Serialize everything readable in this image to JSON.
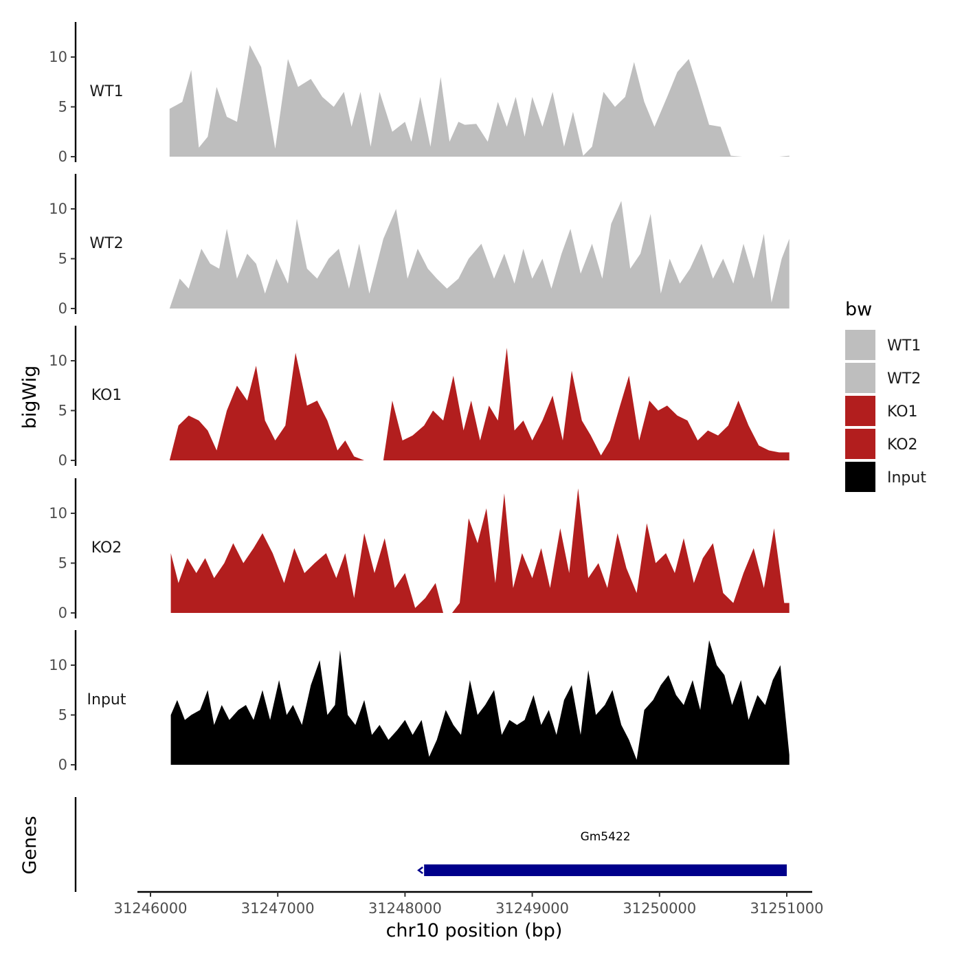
{
  "chart_data": {
    "type": "area",
    "xlabel": "chr10 position (bp)",
    "ylabel": "bigWig",
    "genes_label": "Genes",
    "xlim": [
      31246000,
      31251000
    ],
    "x_ticks": [
      31246000,
      31247000,
      31248000,
      31249000,
      31250000,
      31251000
    ],
    "x_tick_labels": [
      "31246000",
      "31247000",
      "31248000",
      "31249000",
      "31250000",
      "31251000"
    ],
    "ylim": [
      0,
      13.5
    ],
    "y_ticks": [
      0,
      5,
      10
    ],
    "y_tick_labels": [
      "0",
      "5",
      "10"
    ],
    "legend": {
      "title": "bw",
      "entries": [
        {
          "label": "WT1",
          "color": "#bebebe"
        },
        {
          "label": "WT2",
          "color": "#bebebe"
        },
        {
          "label": "KO1",
          "color": "#b21e1e"
        },
        {
          "label": "KO2",
          "color": "#b21e1e"
        },
        {
          "label": "Input",
          "color": "#000000"
        }
      ]
    },
    "series": [
      {
        "name": "WT1",
        "color": "#bebebe",
        "x": [
          31246150,
          31246250,
          31246320,
          31246380,
          31246450,
          31246520,
          31246600,
          31246680,
          31246780,
          31246870,
          31246980,
          31247080,
          31247160,
          31247260,
          31247350,
          31247440,
          31247520,
          31247580,
          31247650,
          31247730,
          31247800,
          31247900,
          31248000,
          31248050,
          31248120,
          31248200,
          31248280,
          31248350,
          31248420,
          31248470,
          31248560,
          31248650,
          31248730,
          31248800,
          31248870,
          31248940,
          31249000,
          31249080,
          31249160,
          31249250,
          31249320,
          31249400,
          31249470,
          31249560,
          31249650,
          31249730,
          31249800,
          31249880,
          31249960,
          31250060,
          31250140,
          31250230,
          31250300,
          31250390,
          31250480,
          31250560,
          31250650,
          31250720,
          31250800,
          31250880,
          31250940,
          31251020
        ],
        "values": [
          4.8,
          5.5,
          8.7,
          0.9,
          2.0,
          7.0,
          4.0,
          3.5,
          11.2,
          9.0,
          0.8,
          9.8,
          7.0,
          7.8,
          6.0,
          5.0,
          6.5,
          3.0,
          6.5,
          1.0,
          6.5,
          2.5,
          3.5,
          1.5,
          6.0,
          1.0,
          8.0,
          1.5,
          3.5,
          3.2,
          3.3,
          1.5,
          5.5,
          3.0,
          6.0,
          2.0,
          6.0,
          3.0,
          6.5,
          1.0,
          4.5,
          0.1,
          1.0,
          6.5,
          5.0,
          6.0,
          9.5,
          5.5,
          3.0,
          6.0,
          8.5,
          9.8,
          7.0,
          3.2,
          3.0,
          0.1,
          0.0,
          0.0,
          0.0,
          0.0,
          0.0,
          0.1
        ]
      },
      {
        "name": "WT2",
        "color": "#bebebe",
        "x": [
          31246150,
          31246230,
          31246300,
          31246400,
          31246470,
          31246540,
          31246600,
          31246680,
          31246760,
          31246830,
          31246900,
          31246990,
          31247080,
          31247150,
          31247230,
          31247310,
          31247400,
          31247480,
          31247560,
          31247640,
          31247720,
          31247830,
          31247930,
          31248020,
          31248100,
          31248180,
          31248250,
          31248330,
          31248420,
          31248500,
          31248600,
          31248700,
          31248780,
          31248860,
          31248930,
          31249000,
          31249080,
          31249150,
          31249230,
          31249300,
          31249380,
          31249470,
          31249550,
          31249620,
          31249700,
          31249770,
          31249850,
          31249930,
          31250010,
          31250080,
          31250160,
          31250240,
          31250330,
          31250420,
          31250500,
          31250580,
          31250660,
          31250740,
          31250820,
          31250880,
          31250960,
          31251020
        ],
        "values": [
          0,
          3.0,
          2.0,
          6.0,
          4.5,
          4.0,
          8.0,
          3.0,
          5.5,
          4.5,
          1.5,
          5.0,
          2.5,
          9.0,
          4.0,
          3.0,
          5.0,
          6.0,
          2.0,
          6.5,
          1.5,
          7.0,
          10.0,
          3.0,
          6.0,
          4.0,
          3.0,
          2.0,
          3.0,
          5.0,
          6.5,
          3.0,
          5.5,
          2.5,
          6.0,
          3.0,
          5.0,
          2.0,
          5.5,
          8.0,
          3.5,
          6.5,
          3.0,
          8.5,
          10.8,
          4.0,
          5.5,
          9.5,
          1.5,
          5.0,
          2.5,
          4.0,
          6.5,
          3.0,
          5.0,
          2.5,
          6.5,
          3.0,
          7.5,
          0.6,
          5.0,
          7.0
        ]
      },
      {
        "name": "KO1",
        "color": "#b21e1e",
        "x": [
          31246150,
          31246220,
          31246300,
          31246380,
          31246450,
          31246520,
          31246600,
          31246680,
          31246760,
          31246830,
          31246900,
          31246980,
          31247060,
          31247140,
          31247230,
          31247310,
          31247390,
          31247470,
          31247530,
          31247600,
          31247680,
          31247730,
          31247760,
          31247830,
          31247900,
          31247980,
          31248060,
          31248150,
          31248220,
          31248300,
          31248380,
          31248460,
          31248520,
          31248590,
          31248660,
          31248730,
          31248800,
          31248860,
          31248930,
          31249000,
          31249080,
          31249160,
          31249240,
          31249310,
          31249390,
          31249460,
          31249540,
          31249610,
          31249690,
          31249760,
          31249840,
          31249920,
          31249990,
          31250060,
          31250140,
          31250220,
          31250300,
          31250380,
          31250460,
          31250540,
          31250620,
          31250700,
          31250780,
          31250860,
          31250940,
          31251020
        ],
        "values": [
          0,
          3.5,
          4.5,
          4.0,
          3.0,
          1.0,
          5.0,
          7.5,
          6.0,
          9.5,
          4.0,
          2.0,
          3.5,
          10.8,
          5.5,
          6.0,
          4.0,
          1.0,
          2.0,
          0.4,
          0.0,
          0.0,
          0.0,
          0.0,
          6.0,
          2.0,
          2.5,
          3.5,
          5.0,
          4.0,
          8.5,
          3.0,
          6.0,
          2.0,
          5.5,
          4.0,
          11.3,
          3.0,
          4.0,
          2.0,
          4.0,
          6.5,
          2.0,
          9.0,
          4.0,
          2.5,
          0.5,
          2.0,
          5.5,
          8.5,
          2.0,
          6.0,
          5.0,
          5.5,
          4.5,
          4.0,
          2.0,
          3.0,
          2.5,
          3.5,
          6.0,
          3.5,
          1.5,
          1.0,
          0.8,
          0.8
        ]
      },
      {
        "name": "KO2",
        "color": "#b21e1e",
        "x": [
          31246160,
          31246220,
          31246290,
          31246360,
          31246430,
          31246500,
          31246580,
          31246650,
          31246730,
          31246810,
          31246880,
          31246960,
          31247050,
          31247130,
          31247210,
          31247290,
          31247380,
          31247460,
          31247530,
          31247600,
          31247680,
          31247760,
          31247840,
          31247920,
          31248000,
          31248080,
          31248160,
          31248240,
          31248300,
          31248370,
          31248430,
          31248500,
          31248570,
          31248640,
          31248710,
          31248780,
          31248850,
          31248920,
          31249000,
          31249070,
          31249140,
          31249220,
          31249290,
          31249360,
          31249440,
          31249520,
          31249590,
          31249670,
          31249740,
          31249820,
          31249900,
          31249970,
          31250050,
          31250120,
          31250190,
          31250270,
          31250340,
          31250420,
          31250500,
          31250580,
          31250660,
          31250740,
          31250820,
          31250900,
          31250980,
          31251020
        ],
        "values": [
          6.0,
          3.0,
          5.5,
          4.0,
          5.5,
          3.5,
          5.0,
          7.0,
          5.0,
          6.5,
          8.0,
          6.0,
          3.0,
          6.5,
          4.0,
          5.0,
          6.0,
          3.5,
          6.0,
          1.5,
          8.0,
          4.0,
          7.5,
          2.5,
          4.0,
          0.5,
          1.5,
          3.0,
          0.0,
          0.0,
          1.0,
          9.5,
          7.0,
          10.5,
          3.0,
          12.0,
          2.5,
          6.0,
          3.5,
          6.5,
          2.5,
          8.5,
          4.0,
          12.5,
          3.5,
          5.0,
          2.5,
          8.0,
          4.5,
          2.0,
          9.0,
          5.0,
          6.0,
          4.0,
          7.5,
          3.0,
          5.5,
          7.0,
          2.0,
          1.0,
          4.0,
          6.5,
          2.5,
          8.5,
          1.0,
          1.0
        ]
      },
      {
        "name": "Input",
        "color": "#000000",
        "x": [
          31246160,
          31246210,
          31246270,
          31246320,
          31246390,
          31246450,
          31246500,
          31246560,
          31246620,
          31246690,
          31246750,
          31246810,
          31246880,
          31246940,
          31247010,
          31247070,
          31247120,
          31247190,
          31247260,
          31247330,
          31247390,
          31247450,
          31247490,
          31247550,
          31247610,
          31247680,
          31247740,
          31247800,
          31247870,
          31247940,
          31248000,
          31248060,
          31248130,
          31248190,
          31248250,
          31248320,
          31248380,
          31248440,
          31248510,
          31248570,
          31248630,
          31248700,
          31248760,
          31248820,
          31248880,
          31248940,
          31249010,
          31249070,
          31249130,
          31249190,
          31249250,
          31249310,
          31249380,
          31249440,
          31249500,
          31249570,
          31249630,
          31249700,
          31249760,
          31249820,
          31249880,
          31249950,
          31250010,
          31250070,
          31250130,
          31250190,
          31250260,
          31250320,
          31250390,
          31250450,
          31250510,
          31250570,
          31250640,
          31250700,
          31250770,
          31250830,
          31250890,
          31250950,
          31251020
        ],
        "values": [
          5.0,
          6.5,
          4.5,
          5.0,
          5.5,
          7.5,
          4.0,
          6.0,
          4.5,
          5.5,
          6.0,
          4.5,
          7.5,
          4.5,
          8.5,
          5.0,
          6.0,
          4.0,
          8.0,
          10.5,
          5.0,
          6.0,
          11.5,
          5.0,
          4.0,
          6.5,
          3.0,
          4.0,
          2.5,
          3.5,
          4.5,
          3.0,
          4.5,
          0.8,
          2.5,
          5.5,
          4.0,
          3.0,
          8.5,
          5.0,
          6.0,
          7.5,
          3.0,
          4.5,
          4.0,
          4.5,
          7.0,
          4.0,
          5.5,
          3.0,
          6.5,
          8.0,
          3.0,
          9.5,
          5.0,
          6.0,
          7.5,
          4.0,
          2.5,
          0.5,
          5.5,
          6.5,
          8.0,
          9.0,
          7.0,
          6.0,
          8.5,
          5.5,
          12.5,
          10.0,
          9.0,
          6.0,
          8.5,
          4.5,
          7.0,
          6.0,
          8.5,
          10.0,
          1.0
        ]
      }
    ],
    "genes": [
      {
        "name": "Gm5422",
        "start": 31248150,
        "end": 31251000,
        "strand": "-",
        "color": "#00008b"
      }
    ]
  }
}
